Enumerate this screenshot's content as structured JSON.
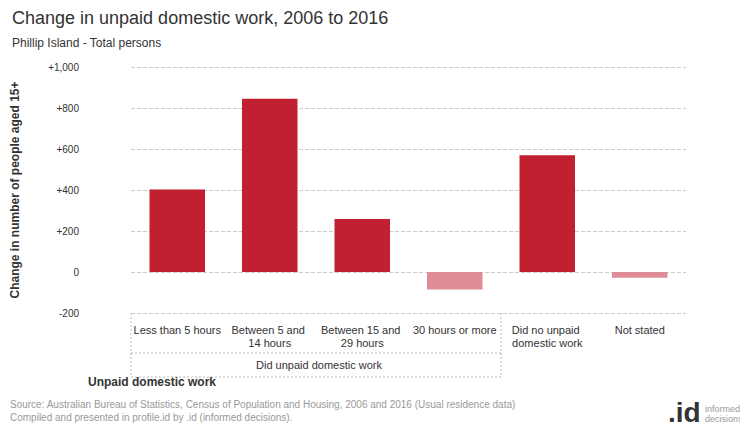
{
  "chart_data": {
    "type": "bar",
    "title": "Change in unpaid domestic work, 2006 to 2016",
    "subtitle": "Phillip Island - Total persons",
    "y_label": "Change in number of people aged 15+",
    "x_label": "Unpaid domestic work",
    "categories": [
      "Less than 5 hours",
      "Between 5 and 14 hours",
      "Between 15 and 29 hours",
      "30 hours or more",
      "Did no unpaid domestic work",
      "Not stated"
    ],
    "values": [
      403,
      845,
      258,
      -85,
      570,
      -28
    ],
    "colors": [
      "#c0202f",
      "#c0202f",
      "#c0202f",
      "#e08c98",
      "#c0202f",
      "#e08c98"
    ],
    "x_group": {
      "label": "Did unpaid domestic work",
      "from": "Less than 5 hours",
      "to": "30 hours or more"
    },
    "ylim": [
      -200,
      1000
    ],
    "yticks": [
      -200,
      0,
      {
        "value": 200,
        "label": "+200"
      },
      {
        "value": 400,
        "label": "+400"
      },
      {
        "value": 600,
        "label": "+600"
      },
      {
        "value": 800,
        "label": "+800"
      },
      {
        "value": 1000,
        "label": "+1,000"
      }
    ],
    "grid": true,
    "source": [
      "Source: Australian Bureau of Statistics, Census of Population and Housing, 2006 and 2016 (Usual residence data)",
      "Compiled and presented in profile.id by .id (informed decisions)."
    ],
    "logo": {
      "mark": ".id",
      "text": "informed decisions"
    }
  }
}
